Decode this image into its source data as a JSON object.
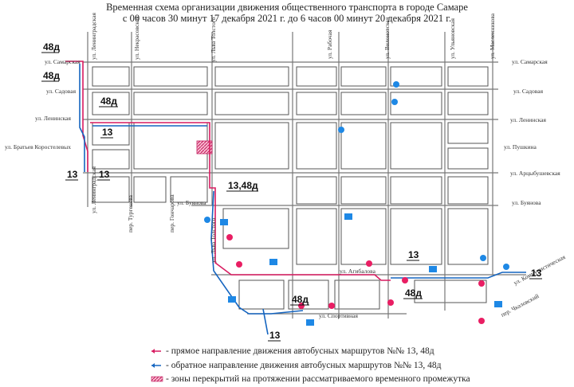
{
  "title": {
    "line1": "Временная схема организации движения общественного транспорта в городе Самаре",
    "line2": "с 00 часов 30 минут 17 декабря 2021 г. до 6 часов 00 минут 20 декабря 2021 г."
  },
  "streets": {
    "samarskaya_left": "ул. Самарская",
    "samarskaya_right": "ул. Самарская",
    "sadovaya_left": "ул. Садовая",
    "sadovaya_right": "ул. Садовая",
    "leninskaya_left": "ул. Ленинская",
    "leninskaya_right": "ул. Ленинская",
    "bratyev": "ул. Братьев Коростелевых",
    "pushkina": "ул. Пушкина",
    "artsybushevskaya": "ул. Арцыбушевская",
    "buyanova_left": "ул. Буянова",
    "buyanova_right": "ул. Буянова",
    "leningradskaya_top": "ул. Ленинградская",
    "leningradskaya_bottom": "ул. Ленинградская",
    "nekrasovskaya": "ул. Некрасовская",
    "lva_tolstogo_top": "ул. Льва Толстого",
    "lva_tolstogo_bottom": "ул. Льва Толстого",
    "rabochaya": "ул. Рабочая",
    "vilonovskaya": "ул. Вилоновская",
    "ulyanovskaya": "ул. Ульяновская",
    "maslennikova": "ул. Масленникова",
    "turgeneva": "пер. Тургенева",
    "goncharova": "пер. Гончарова",
    "agibalova": "ул. Агибалова",
    "sportivnaya": "ул. Спортивная",
    "kommunisticheskaya": "ул. Коммунистическая",
    "chkalovsky": "пер. Чкаловский"
  },
  "routes": {
    "r48_a": "48д",
    "r48_b": "48д",
    "r48_c": "48д",
    "r13_a": "13",
    "r13_b": "13",
    "r13_c": "13",
    "r1348": "13,48д",
    "r13_d": "13",
    "r13_e": "13",
    "r48_d": "48д",
    "r48_e": "48д",
    "r13_f": "13"
  },
  "legend": {
    "forward": "- прямое направление движения автобусных маршрутов №№ 13, 48д",
    "backward": "- обратное направление движения автобусных маршрутов №№ 13, 48д",
    "closures": "- зоны перекрытий на протяжении рассматриваемого временного промежутка"
  },
  "colors": {
    "forward": "#d81b60",
    "backward": "#1565c0",
    "closure": "#e91e63",
    "street": "#444444"
  }
}
